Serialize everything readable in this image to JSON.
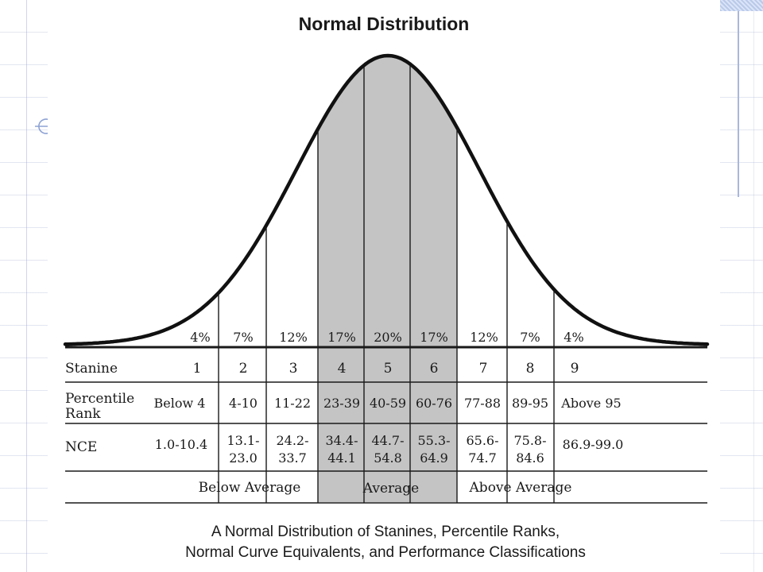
{
  "title": "Normal Distribution",
  "caption_line1": "A Normal Distribution of Stanines, Percentile Ranks,",
  "caption_line2": "Normal Curve Equivalents, and Performance Classifications",
  "rows": {
    "stanine_label": "Stanine",
    "percentile_label_line1": "Percentile",
    "percentile_label_line2": "Rank",
    "nce_label": "NCE"
  },
  "columns": [
    {
      "percent": "4%",
      "stanine": "1",
      "percentile": "Below 4",
      "nce": [
        "1.0-10.4"
      ],
      "shaded": false
    },
    {
      "percent": "7%",
      "stanine": "2",
      "percentile": "4-10",
      "nce": [
        "13.1-",
        "23.0"
      ],
      "shaded": false
    },
    {
      "percent": "12%",
      "stanine": "3",
      "percentile": "11-22",
      "nce": [
        "24.2-",
        "33.7"
      ],
      "shaded": false
    },
    {
      "percent": "17%",
      "stanine": "4",
      "percentile": "23-39",
      "nce": [
        "34.4-",
        "44.1"
      ],
      "shaded": true
    },
    {
      "percent": "20%",
      "stanine": "5",
      "percentile": "40-59",
      "nce": [
        "44.7-",
        "54.8"
      ],
      "shaded": true
    },
    {
      "percent": "17%",
      "stanine": "6",
      "percentile": "60-76",
      "nce": [
        "55.3-",
        "64.9"
      ],
      "shaded": true
    },
    {
      "percent": "12%",
      "stanine": "7",
      "percentile": "77-88",
      "nce": [
        "65.6-",
        "74.7"
      ],
      "shaded": false
    },
    {
      "percent": "7%",
      "stanine": "8",
      "percentile": "89-95",
      "nce": [
        "75.8-",
        "84.6"
      ],
      "shaded": false
    },
    {
      "percent": "4%",
      "stanine": "9",
      "percentile": "Above 95",
      "nce": [
        "86.9-99.0"
      ],
      "shaded": false
    }
  ],
  "classifications": {
    "below": "Below Average",
    "average": "Average",
    "above": "Above Average"
  },
  "colors": {
    "shade": "#c4c4c4",
    "ink": "#1a1a1a",
    "curve": "#111111"
  }
}
